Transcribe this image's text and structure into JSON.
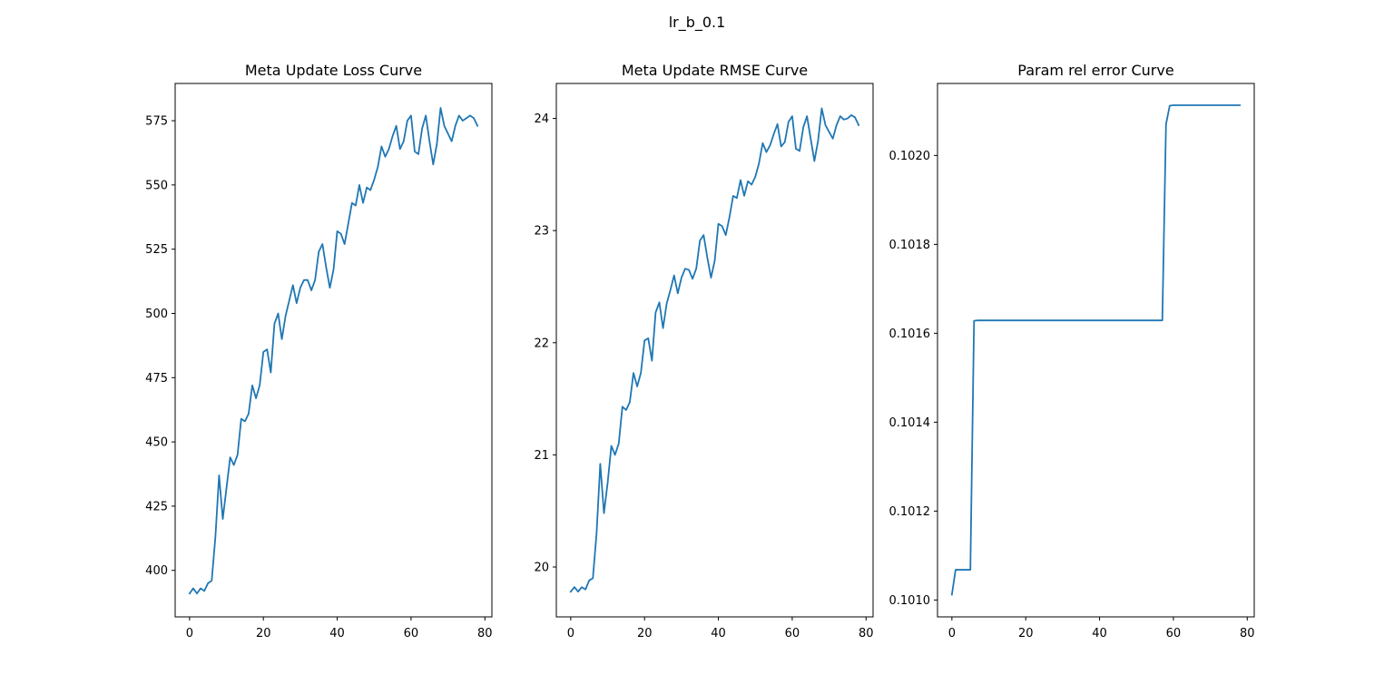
{
  "figure": {
    "suptitle": "lr_b_0.1",
    "line_color": "#1f77b4"
  },
  "chart_data": [
    {
      "type": "line",
      "title": "Meta Update Loss Curve",
      "xlabel": "",
      "ylabel": "",
      "grid": false,
      "xlim": [
        -3.9,
        81.9
      ],
      "ylim": [
        381.9,
        589.5
      ],
      "xticks": [
        0,
        20,
        40,
        60,
        80
      ],
      "xtick_labels": [
        "0",
        "20",
        "40",
        "60",
        "80"
      ],
      "yticks": [
        400,
        425,
        450,
        475,
        500,
        525,
        550,
        575
      ],
      "ytick_labels": [
        "400",
        "425",
        "450",
        "475",
        "500",
        "525",
        "550",
        "575"
      ],
      "series": [
        {
          "values": [
            391,
            393,
            391,
            393,
            392,
            395,
            396,
            413,
            437,
            420,
            432,
            444,
            441,
            445,
            459,
            458,
            461,
            472,
            467,
            472,
            485,
            486,
            477,
            496,
            500,
            490,
            499,
            505,
            511,
            504,
            510,
            513,
            513,
            509,
            513,
            524,
            527,
            518,
            510,
            517,
            532,
            531,
            527,
            535,
            543,
            542,
            550,
            543,
            549,
            548,
            552,
            557,
            565,
            561,
            564,
            569,
            573,
            564,
            567,
            575,
            577,
            563,
            562,
            572,
            577,
            567,
            558,
            566,
            580,
            573,
            570,
            567,
            573,
            577,
            575,
            576,
            577,
            576,
            573
          ]
        }
      ]
    },
    {
      "type": "line",
      "title": "Meta Update RMSE Curve",
      "xlabel": "",
      "ylabel": "",
      "grid": false,
      "xlim": [
        -3.9,
        81.9
      ],
      "ylim": [
        19.555,
        24.312
      ],
      "xticks": [
        0,
        20,
        40,
        60,
        80
      ],
      "xtick_labels": [
        "0",
        "20",
        "40",
        "60",
        "80"
      ],
      "yticks": [
        20,
        21,
        22,
        23,
        24
      ],
      "ytick_labels": [
        "20",
        "21",
        "22",
        "23",
        "24"
      ],
      "series": [
        {
          "values": [
            19.78,
            19.82,
            19.78,
            19.82,
            19.8,
            19.88,
            19.9,
            20.3,
            20.92,
            20.48,
            20.75,
            21.08,
            21.0,
            21.1,
            21.43,
            21.4,
            21.47,
            21.73,
            21.61,
            21.73,
            22.02,
            22.04,
            21.84,
            22.27,
            22.36,
            22.13,
            22.35,
            22.47,
            22.6,
            22.44,
            22.58,
            22.66,
            22.65,
            22.57,
            22.66,
            22.91,
            22.96,
            22.76,
            22.58,
            22.73,
            23.06,
            23.04,
            22.96,
            23.12,
            23.31,
            23.29,
            23.45,
            23.31,
            23.44,
            23.41,
            23.48,
            23.6,
            23.78,
            23.7,
            23.76,
            23.86,
            23.95,
            23.75,
            23.79,
            23.97,
            24.02,
            23.73,
            23.71,
            23.92,
            24.02,
            23.82,
            23.62,
            23.8,
            24.09,
            23.94,
            23.88,
            23.82,
            23.94,
            24.02,
            23.99,
            24.0,
            24.03,
            24.01,
            23.94
          ]
        }
      ]
    },
    {
      "type": "line",
      "title": "Param rel error Curve",
      "xlabel": "",
      "ylabel": "",
      "grid": false,
      "xlim": [
        -3.9,
        81.9
      ],
      "ylim": [
        0.100962,
        0.102162
      ],
      "xticks": [
        0,
        20,
        40,
        60,
        80
      ],
      "xtick_labels": [
        "0",
        "20",
        "40",
        "60",
        "80"
      ],
      "yticks": [
        0.101,
        0.1012,
        0.1014,
        0.1016,
        0.1018,
        0.102
      ],
      "ytick_labels": [
        "0.1010",
        "0.1012",
        "0.1014",
        "0.1016",
        "0.1018",
        "0.1020"
      ],
      "series": [
        {
          "values": [
            0.101012,
            0.101068,
            0.101068,
            0.101068,
            0.101068,
            0.101068,
            0.101628,
            0.101629,
            0.101629,
            0.101629,
            0.101629,
            0.101629,
            0.101629,
            0.101629,
            0.101629,
            0.101629,
            0.101629,
            0.101629,
            0.101629,
            0.101629,
            0.101629,
            0.101629,
            0.101629,
            0.101629,
            0.101629,
            0.101629,
            0.101629,
            0.101629,
            0.101629,
            0.101629,
            0.101629,
            0.101629,
            0.101629,
            0.101629,
            0.101629,
            0.101629,
            0.101629,
            0.101629,
            0.101629,
            0.101629,
            0.101629,
            0.101629,
            0.101629,
            0.101629,
            0.101629,
            0.101629,
            0.101629,
            0.101629,
            0.101629,
            0.101629,
            0.101629,
            0.101629,
            0.101629,
            0.101629,
            0.101629,
            0.101629,
            0.101629,
            0.101629,
            0.10207,
            0.102112,
            0.102113,
            0.102113,
            0.102113,
            0.102113,
            0.102113,
            0.102113,
            0.102113,
            0.102113,
            0.102113,
            0.102113,
            0.102113,
            0.102113,
            0.102113,
            0.102113,
            0.102113,
            0.102113,
            0.102113,
            0.102113,
            0.102113
          ]
        }
      ]
    }
  ]
}
